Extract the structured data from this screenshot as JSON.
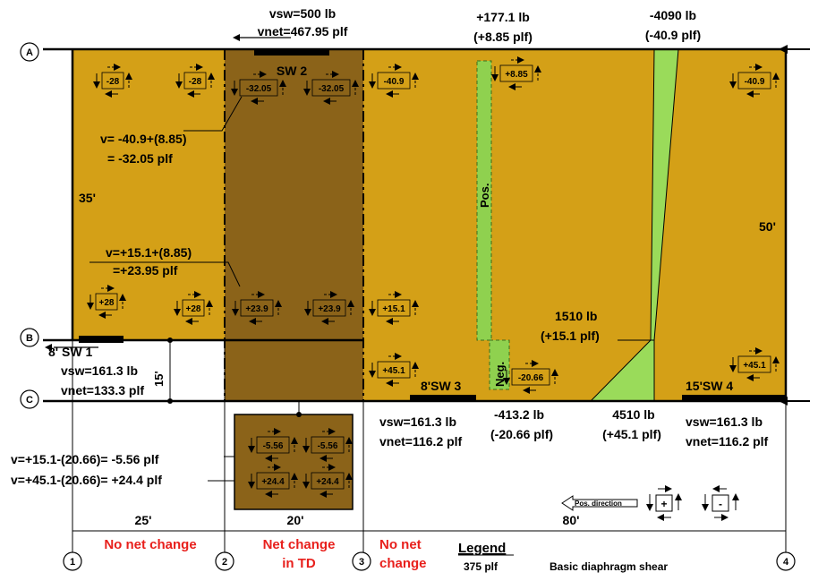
{
  "colors": {
    "diaphragm": "#D4A017",
    "td_zone": "#8B6319",
    "pos_neg": "#8FD14F",
    "chord": "#9ADB5A",
    "red": "#E8201C",
    "line": "#000000"
  },
  "grid": {
    "rows": [
      "A",
      "B",
      "C"
    ],
    "cols": [
      "1",
      "2",
      "3",
      "4"
    ]
  },
  "dims": {
    "d35": "35'",
    "d15": "15'",
    "d50": "50'",
    "d25": "25'",
    "d20": "20'",
    "d80": "80'"
  },
  "shear_walls": {
    "sw1": "8' SW 1",
    "sw2": "SW 2",
    "sw3": "8'SW 3",
    "sw4": "15'SW 4"
  },
  "top_labels": {
    "vsw_sw2": "vsw=500 lb",
    "vnet_sw2": "vnet=467.95 plf",
    "chord_pos1": "+177.1 lb",
    "chord_pos2": "(+8.85 plf)",
    "chord_neg1": "-4090 lb",
    "chord_neg2": "(-40.9 plf)"
  },
  "equations": {
    "eq1a": "v= -40.9+(8.85)",
    "eq1b": "= -32.05 plf",
    "eq2a": "v=+15.1+(8.85)",
    "eq2b": "=+23.95 plf",
    "eq3": "v=+15.1-(20.66)= -5.56 plf",
    "eq4": "v=+45.1-(20.66)= +24.4 plf"
  },
  "sw1_labels": {
    "vsw": "vsw=161.3 lb",
    "vnet": "vnet=133.3 plf"
  },
  "sw3_labels": {
    "vsw": "vsw=161.3 lb",
    "vnet": "vnet=116.2 plf"
  },
  "sw4_labels": {
    "vsw": "vsw=161.3 lb",
    "vnet": "vnet=116.2 plf"
  },
  "mid_labels": {
    "l1510a": "1510 lb",
    "l1510b": "(+15.1 plf)",
    "l413a": "-413.2 lb",
    "l413b": "(-20.66 plf)",
    "l4510a": "4510 lb",
    "l4510b": "(+45.1 plf)"
  },
  "strip_labels": {
    "pos": "Pos.",
    "neg": "Neg."
  },
  "elements": {
    "e1": "-28",
    "e2": "-28",
    "e3": "-32.05",
    "e4": "-32.05",
    "e5": "-40.9",
    "e6": "+8.85",
    "e7": "-40.9",
    "e8": "+28",
    "e9": "+28",
    "e10": "+23.9",
    "e11": "+23.9",
    "e12": "+15.1",
    "e13": "+45.1",
    "e14": "-20.66",
    "e15": "+45.1",
    "t1": "-5.56",
    "t2": "-5.56",
    "t3": "+24.4",
    "t4": "+24.4"
  },
  "bottom_notes": {
    "no_net_1": "No net change",
    "net_td_1": "Net change",
    "net_td_2": "in TD",
    "no_net_2a": "No net",
    "no_net_2b": "change"
  },
  "legend": {
    "title": "Legend",
    "value": "375 plf",
    "desc": "Basic diaphragm shear",
    "pos_direction": "Pos. direction",
    "plus": "+",
    "minus": "-"
  }
}
